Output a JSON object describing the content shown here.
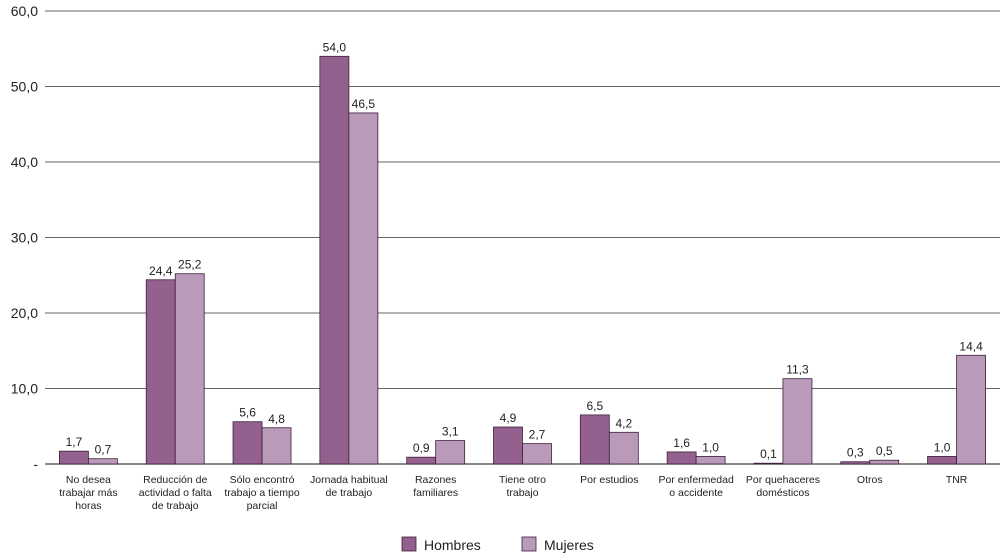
{
  "chart_data": {
    "type": "bar",
    "title": "",
    "xlabel": "",
    "ylabel": "",
    "ylim": [
      0,
      60
    ],
    "yticks": [
      "-",
      "10,0",
      "20,0",
      "30,0",
      "40,0",
      "50,0",
      "60,0"
    ],
    "grid": true,
    "legend_position": "bottom",
    "categories": [
      [
        "No desea",
        "trabajar más",
        "horas"
      ],
      [
        "Reducción de",
        "actividad o falta",
        "de trabajo"
      ],
      [
        "Sólo encontró",
        "trabajo a tiempo",
        "parcial"
      ],
      [
        "Jornada habitual",
        "de trabajo"
      ],
      [
        "Razones",
        "familiares"
      ],
      [
        "Tiene otro",
        "trabajo"
      ],
      [
        "Por estudios"
      ],
      [
        "Por enfermedad",
        "o accidente"
      ],
      [
        "Por quehaceres",
        "domésticos"
      ],
      [
        "Otros"
      ],
      [
        "TNR"
      ]
    ],
    "series": [
      {
        "name": "Hombres",
        "color": "#94618f",
        "values": [
          1.7,
          24.4,
          5.6,
          54.0,
          0.9,
          4.9,
          6.5,
          1.6,
          0.1,
          0.3,
          1.0
        ],
        "labels": [
          "1,7",
          "24,4",
          "5,6",
          "54,0",
          "0,9",
          "4,9",
          "6,5",
          "1,6",
          "0,1",
          "0,3",
          "1,0"
        ]
      },
      {
        "name": "Mujeres",
        "color": "#b99ab8",
        "values": [
          0.7,
          25.2,
          4.8,
          46.5,
          3.1,
          2.7,
          4.2,
          1.0,
          11.3,
          0.5,
          14.4
        ],
        "labels": [
          "0,7",
          "25,2",
          "4,8",
          "46,5",
          "3,1",
          "2,7",
          "4,2",
          "1,0",
          "11,3",
          "0,5",
          "14,4"
        ]
      }
    ]
  }
}
